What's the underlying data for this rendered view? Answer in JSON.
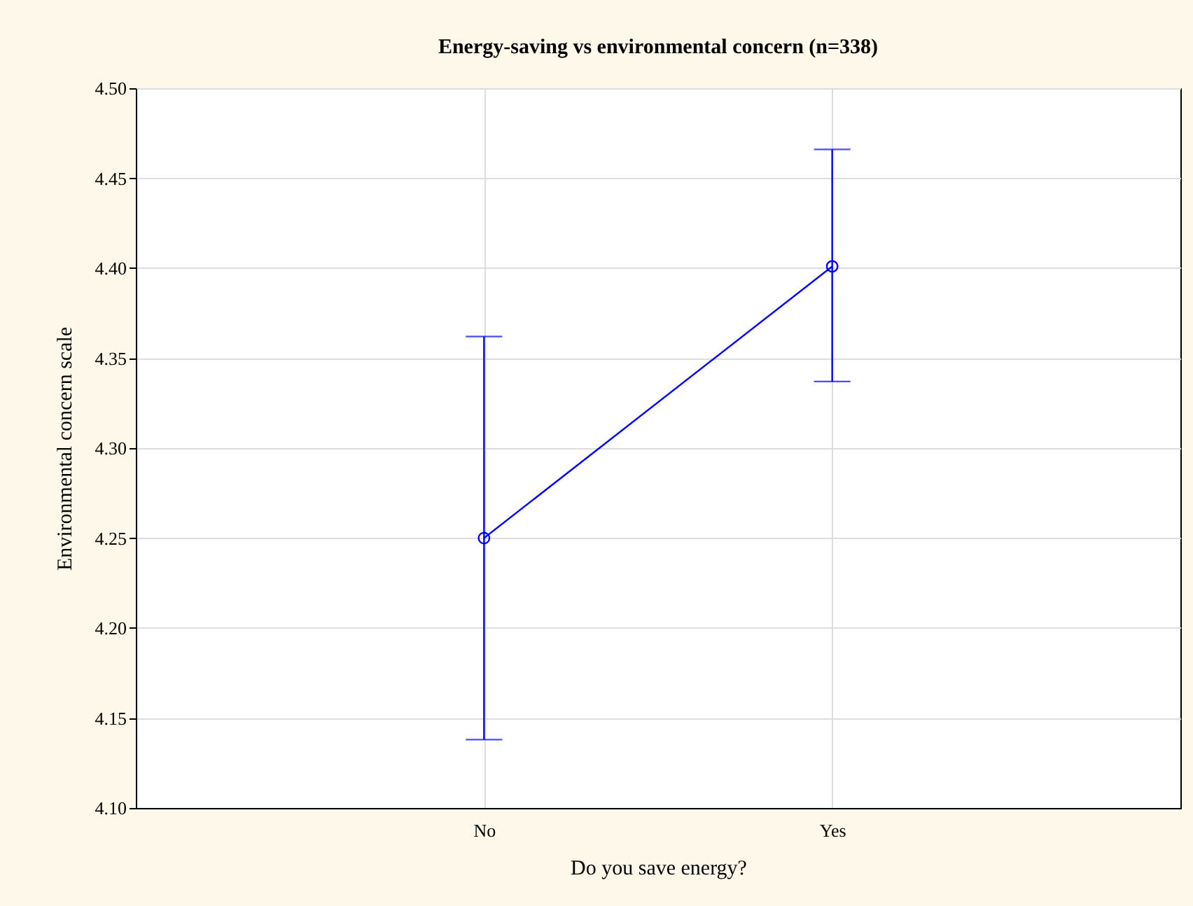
{
  "chart_data": {
    "type": "line",
    "title": "Energy-saving vs environmental concern (n=338)",
    "xlabel": "Do you save energy?",
    "ylabel": "Environmental concern scale",
    "categories": [
      "No",
      "Yes"
    ],
    "series": [
      {
        "color": "#0000ff",
        "values": [
          4.25,
          4.401
        ],
        "errors": [
          [
            4.138,
            4.362
          ],
          [
            4.337,
            4.466
          ]
        ]
      }
    ],
    "ylim": [
      4.1,
      4.5
    ],
    "yticks": [
      {
        "value": 4.1,
        "label": "4.10"
      },
      {
        "value": 4.15,
        "label": "4.15"
      },
      {
        "value": 4.2,
        "label": "4.20"
      },
      {
        "value": 4.25,
        "label": "4.25"
      },
      {
        "value": 4.3,
        "label": "4.30"
      },
      {
        "value": 4.35,
        "label": "4.35"
      },
      {
        "value": 4.4,
        "label": "4.40"
      },
      {
        "value": 4.45,
        "label": "4.45"
      },
      {
        "value": 4.5,
        "label": "4.50"
      }
    ],
    "grid": true,
    "marker": "circle",
    "line_style": "solid"
  }
}
